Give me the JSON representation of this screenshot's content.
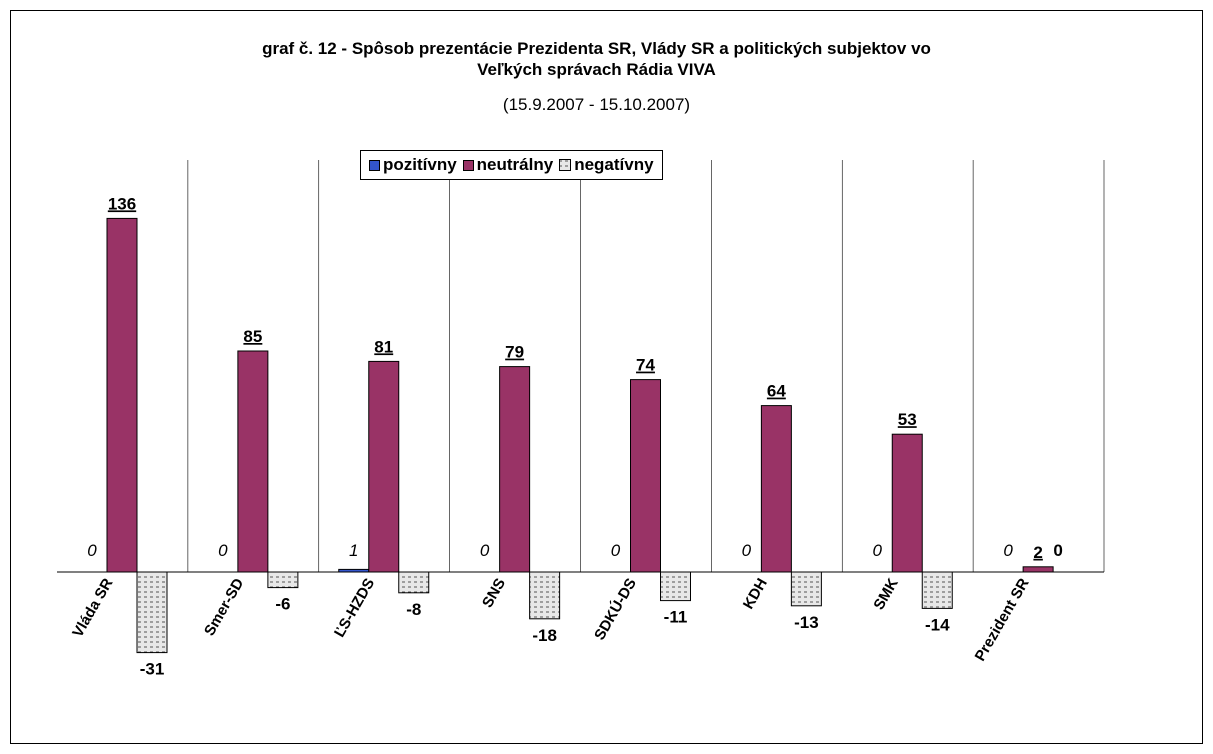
{
  "chart_data": {
    "type": "bar",
    "title_line1": "graf č. 12 - Spôsob prezentácie Prezidenta SR, Vlády SR a politických  subjektov vo",
    "title_line2": "Veľkých správach Rádia VIVA",
    "subtitle": "(15.9.2007 - 15.10.2007)",
    "categories": [
      "Vláda SR",
      "Smer-SD",
      "ĽS-HZDS",
      "SNS",
      "SDKÚ-DS",
      "KDH",
      "SMK",
      "Prezident SR"
    ],
    "series": [
      {
        "name": "pozitívny",
        "color": "#3355cc",
        "values": [
          0,
          0,
          1,
          0,
          0,
          0,
          0,
          0
        ]
      },
      {
        "name": "neutrálny",
        "color": "#993366",
        "values": [
          136,
          85,
          81,
          79,
          74,
          64,
          53,
          2
        ]
      },
      {
        "name": "negatívny",
        "color": "#e4e4e4",
        "values": [
          -31,
          -6,
          -8,
          -18,
          -11,
          -13,
          -14,
          0
        ]
      }
    ],
    "value_labels": {
      "pozitívny": [
        "0",
        "0",
        "1",
        "0",
        "0",
        "0",
        "0",
        "0"
      ],
      "neutrálny": [
        "136",
        "85",
        "81",
        "79",
        "74",
        "64",
        "53",
        "2"
      ],
      "negatívny": [
        "-31",
        "-6",
        "-8",
        "-18",
        "-11",
        "-13",
        "-14",
        "0"
      ]
    },
    "ylim": [
      -34,
      140
    ],
    "grid": "vertical separators",
    "legend_position": "top-center"
  }
}
